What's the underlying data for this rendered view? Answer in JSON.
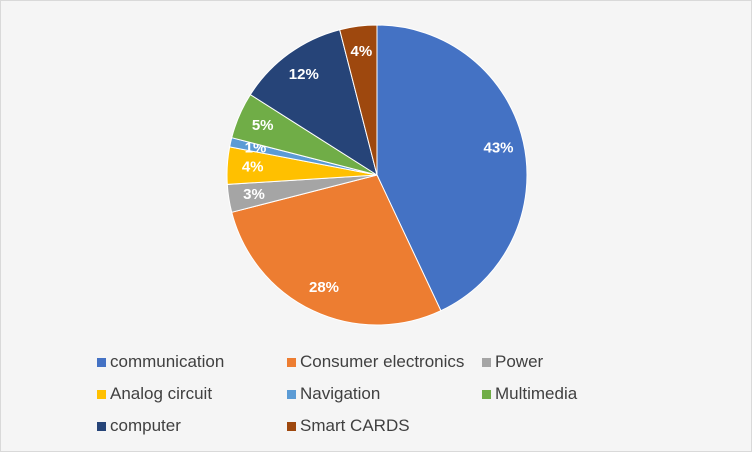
{
  "chart_data": {
    "type": "pie",
    "categories": [
      "communication",
      "Consumer electronics",
      "Power",
      "Analog circuit",
      "Navigation",
      "Multimedia",
      "computer",
      "Smart CARDS"
    ],
    "values": [
      43,
      28,
      3,
      4,
      1,
      5,
      12,
      4
    ],
    "labels": [
      "43%",
      "28%",
      "3%",
      "4%",
      "1%",
      "5%",
      "12%",
      "4%"
    ],
    "colors": [
      "#4472C4",
      "#ED7D31",
      "#A5A5A5",
      "#FFC000",
      "#5B9BD5",
      "#70AD47",
      "#264478",
      "#9E480E"
    ],
    "title": "",
    "legend_position": "bottom"
  }
}
